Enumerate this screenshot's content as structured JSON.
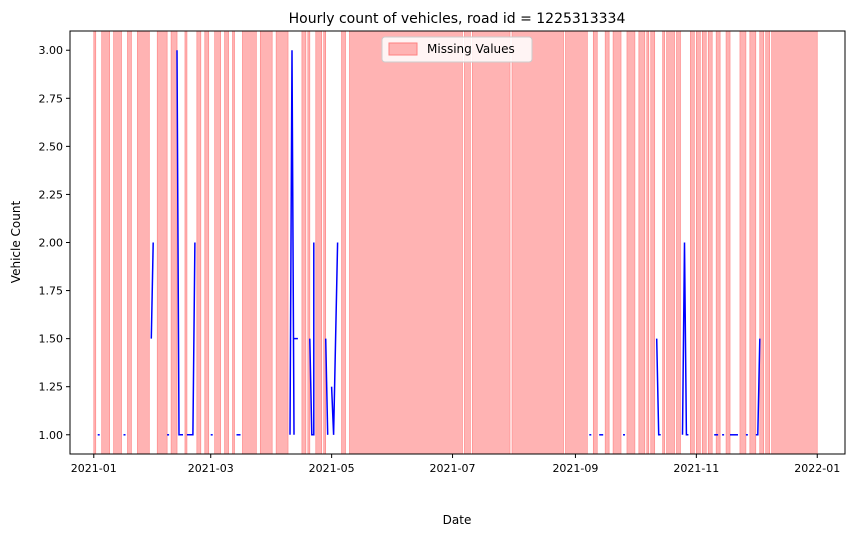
{
  "chart_data": {
    "type": "line",
    "title": "Hourly count of vehicles, road id = 1225313334",
    "xlabel": "Date",
    "ylabel": "Vehicle Count",
    "xlim": [
      "2020-12-20",
      "2022-01-15"
    ],
    "ylim": [
      0.9,
      3.1
    ],
    "grid": false,
    "legend_position": "top-center",
    "x_ticks": [
      "2021-01",
      "2021-03",
      "2021-05",
      "2021-07",
      "2021-09",
      "2021-11",
      "2022-01"
    ],
    "x_tick_dates": [
      "2021-01-01",
      "2021-03-01",
      "2021-05-01",
      "2021-07-01",
      "2021-09-01",
      "2021-11-01",
      "2022-01-01"
    ],
    "y_ticks": [
      "1.00",
      "1.25",
      "1.50",
      "1.75",
      "2.00",
      "2.25",
      "2.50",
      "2.75",
      "3.00"
    ],
    "y_tick_values": [
      1.0,
      1.25,
      1.5,
      1.75,
      2.0,
      2.25,
      2.5,
      2.75,
      3.0
    ],
    "legend": {
      "missing_label": "Missing Values"
    },
    "colors": {
      "line": "#0000ff",
      "missing_fill": "#ffb3b3",
      "missing_edge": "#ff8080"
    },
    "missing_ranges": [
      [
        "2021-01-01",
        "2021-01-02"
      ],
      [
        "2021-01-05",
        "2021-01-09"
      ],
      [
        "2021-01-11",
        "2021-01-15"
      ],
      [
        "2021-01-18",
        "2021-01-20"
      ],
      [
        "2021-01-23",
        "2021-01-29"
      ],
      [
        "2021-02-02",
        "2021-02-07"
      ],
      [
        "2021-02-09",
        "2021-02-12"
      ],
      [
        "2021-02-16",
        "2021-02-17"
      ],
      [
        "2021-02-22",
        "2021-02-24"
      ],
      [
        "2021-02-26",
        "2021-02-28"
      ],
      [
        "2021-03-03",
        "2021-03-06"
      ],
      [
        "2021-03-08",
        "2021-03-10"
      ],
      [
        "2021-03-12",
        "2021-03-13"
      ],
      [
        "2021-03-17",
        "2021-03-24"
      ],
      [
        "2021-03-26",
        "2021-04-01"
      ],
      [
        "2021-04-03",
        "2021-04-09"
      ],
      [
        "2021-04-16",
        "2021-04-18"
      ],
      [
        "2021-04-19",
        "2021-04-20"
      ],
      [
        "2021-04-23",
        "2021-04-26"
      ],
      [
        "2021-04-27",
        "2021-04-28"
      ],
      [
        "2021-05-06",
        "2021-05-08"
      ],
      [
        "2021-05-10",
        "2021-07-06"
      ],
      [
        "2021-07-07",
        "2021-07-10"
      ],
      [
        "2021-07-11",
        "2021-07-30"
      ],
      [
        "2021-07-31",
        "2021-08-26"
      ],
      [
        "2021-08-27",
        "2021-09-07"
      ],
      [
        "2021-09-10",
        "2021-09-12"
      ],
      [
        "2021-09-16",
        "2021-09-18"
      ],
      [
        "2021-09-20",
        "2021-09-24"
      ],
      [
        "2021-09-27",
        "2021-10-01"
      ],
      [
        "2021-10-03",
        "2021-10-06"
      ],
      [
        "2021-10-07",
        "2021-10-08"
      ],
      [
        "2021-10-09",
        "2021-10-11"
      ],
      [
        "2021-10-15",
        "2021-10-16"
      ],
      [
        "2021-10-17",
        "2021-10-21"
      ],
      [
        "2021-10-22",
        "2021-10-24"
      ],
      [
        "2021-10-29",
        "2021-10-31"
      ],
      [
        "2021-11-01",
        "2021-11-03"
      ],
      [
        "2021-11-04",
        "2021-11-06"
      ],
      [
        "2021-11-07",
        "2021-11-09"
      ],
      [
        "2021-11-11",
        "2021-11-13"
      ],
      [
        "2021-11-16",
        "2021-11-18"
      ],
      [
        "2021-11-23",
        "2021-11-26"
      ],
      [
        "2021-11-28",
        "2021-12-01"
      ],
      [
        "2021-12-03",
        "2021-12-05"
      ],
      [
        "2021-12-06",
        "2021-12-08"
      ],
      [
        "2021-12-09",
        "2022-01-01"
      ]
    ],
    "series": [
      {
        "points": [
          [
            "2021-01-03",
            1.0
          ],
          [
            "2021-01-04",
            1.0
          ]
        ]
      },
      {
        "points": [
          [
            "2021-01-16",
            1.0
          ],
          [
            "2021-01-17",
            1.0
          ]
        ]
      },
      {
        "points": [
          [
            "2021-01-30",
            1.5
          ],
          [
            "2021-01-31",
            2.0
          ]
        ]
      },
      {
        "points": [
          [
            "2021-02-07",
            1.0
          ],
          [
            "2021-02-08",
            1.0
          ]
        ]
      },
      {
        "points": [
          [
            "2021-02-12",
            3.0
          ],
          [
            "2021-02-13",
            1.0
          ],
          [
            "2021-02-15",
            1.0
          ]
        ]
      },
      {
        "points": [
          [
            "2021-02-17",
            1.0
          ],
          [
            "2021-02-20",
            1.0
          ],
          [
            "2021-02-21",
            2.0
          ]
        ]
      },
      {
        "points": [
          [
            "2021-03-01",
            1.0
          ],
          [
            "2021-03-02",
            1.0
          ]
        ]
      },
      {
        "points": [
          [
            "2021-03-14",
            1.0
          ],
          [
            "2021-03-16",
            1.0
          ]
        ]
      },
      {
        "points": [
          [
            "2021-04-10",
            1.0
          ],
          [
            "2021-04-11",
            3.0
          ],
          [
            "2021-04-12",
            1.0
          ]
        ]
      },
      {
        "points": [
          [
            "2021-04-12",
            1.5
          ],
          [
            "2021-04-14",
            1.5
          ]
        ]
      },
      {
        "points": [
          [
            "2021-04-20",
            1.5
          ],
          [
            "2021-04-21",
            1.0
          ],
          [
            "2021-04-22",
            1.0
          ],
          [
            "2021-04-22",
            2.0
          ]
        ]
      },
      {
        "points": [
          [
            "2021-04-28",
            1.5
          ],
          [
            "2021-04-29",
            1.0
          ]
        ]
      },
      {
        "points": [
          [
            "2021-05-01",
            1.25
          ],
          [
            "2021-05-02",
            1.0
          ],
          [
            "2021-05-04",
            2.0
          ]
        ]
      },
      {
        "points": [
          [
            "2021-09-08",
            1.0
          ],
          [
            "2021-09-09",
            1.0
          ]
        ]
      },
      {
        "points": [
          [
            "2021-09-13",
            1.0
          ],
          [
            "2021-09-15",
            1.0
          ]
        ]
      },
      {
        "points": [
          [
            "2021-09-25",
            1.0
          ],
          [
            "2021-09-26",
            1.0
          ]
        ]
      },
      {
        "points": [
          [
            "2021-10-12",
            1.5
          ],
          [
            "2021-10-13",
            1.0
          ],
          [
            "2021-10-14",
            1.0
          ]
        ]
      },
      {
        "points": [
          [
            "2021-10-25",
            1.0
          ],
          [
            "2021-10-26",
            2.0
          ],
          [
            "2021-10-27",
            1.0
          ],
          [
            "2021-10-28",
            1.0
          ]
        ]
      },
      {
        "points": [
          [
            "2021-11-10",
            1.0
          ],
          [
            "2021-11-12",
            1.0
          ]
        ]
      },
      {
        "points": [
          [
            "2021-11-14",
            1.0
          ],
          [
            "2021-11-15",
            1.0
          ]
        ]
      },
      {
        "points": [
          [
            "2021-11-18",
            1.0
          ],
          [
            "2021-11-22",
            1.0
          ]
        ]
      },
      {
        "points": [
          [
            "2021-11-26",
            1.0
          ],
          [
            "2021-11-27",
            1.0
          ]
        ]
      },
      {
        "points": [
          [
            "2021-12-01",
            1.0
          ],
          [
            "2021-12-02",
            1.0
          ],
          [
            "2021-12-03",
            1.5
          ]
        ]
      }
    ]
  }
}
